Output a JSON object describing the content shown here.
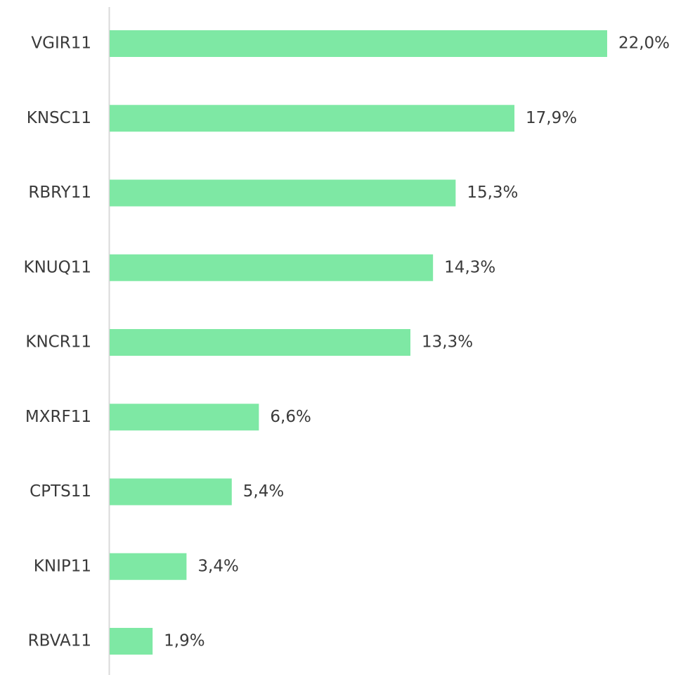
{
  "chart_data": {
    "type": "bar",
    "orientation": "horizontal",
    "categories": [
      "VGIR11",
      "KNSC11",
      "RBRY11",
      "KNUQ11",
      "KNCR11",
      "MXRF11",
      "CPTS11",
      "KNIP11",
      "RBVA11"
    ],
    "values": [
      22.0,
      17.9,
      15.3,
      14.3,
      13.3,
      6.6,
      5.4,
      3.4,
      1.9
    ],
    "value_labels": [
      "22,0%",
      "17,9%",
      "15,3%",
      "14,3%",
      "13,3%",
      "6,6%",
      "5,4%",
      "3,4%",
      "1,9%"
    ],
    "color": "#7ee8a4"
  }
}
